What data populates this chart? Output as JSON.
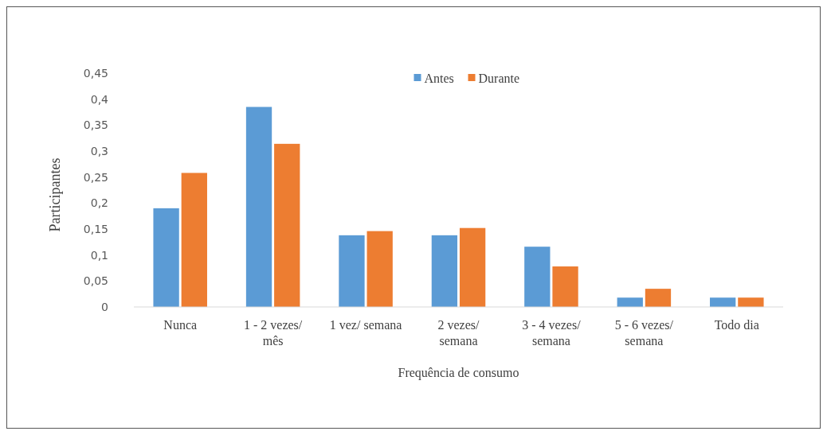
{
  "chart_data": {
    "type": "bar",
    "xlabel": "Frequência de consumo",
    "ylabel": "Participantes",
    "categories": [
      "Nunca",
      "1 - 2 vezes/\nmês",
      "1 vez/ semana",
      "2 vezes/\nsemana",
      "3 - 4 vezes/\nsemana",
      "5 - 6 vezes/\nsemana",
      "Todo dia"
    ],
    "series": [
      {
        "name": "Antes",
        "color": "#5b9bd5",
        "values": [
          0.19,
          0.385,
          0.138,
          0.138,
          0.116,
          0.018,
          0.018
        ]
      },
      {
        "name": "Durante",
        "color": "#ed7d31",
        "values": [
          0.258,
          0.314,
          0.146,
          0.152,
          0.078,
          0.035,
          0.018
        ]
      }
    ],
    "ylim": [
      0,
      0.45
    ],
    "yticks": [
      {
        "value": 0,
        "label": "0"
      },
      {
        "value": 0.05,
        "label": "0,05"
      },
      {
        "value": 0.1,
        "label": "0,1"
      },
      {
        "value": 0.15,
        "label": "0,15"
      },
      {
        "value": 0.2,
        "label": "0,2"
      },
      {
        "value": 0.25,
        "label": "0,25"
      },
      {
        "value": 0.3,
        "label": "0,3"
      },
      {
        "value": 0.35,
        "label": "0,35"
      },
      {
        "value": 0.4,
        "label": "0,4"
      },
      {
        "value": 0.45,
        "label": "0,45"
      }
    ],
    "grid": false,
    "legend": "top"
  }
}
